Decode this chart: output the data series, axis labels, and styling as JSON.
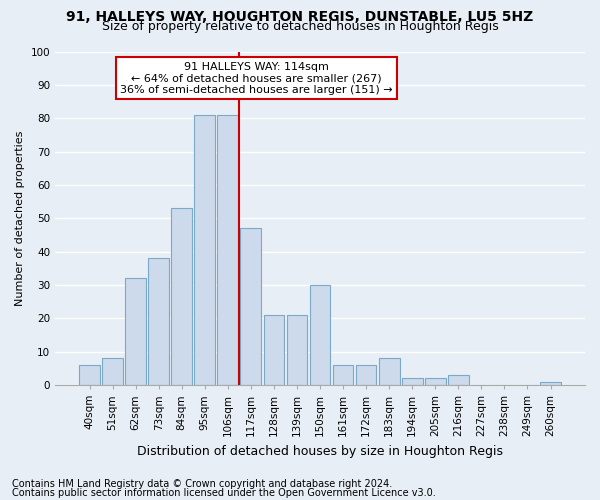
{
  "title1": "91, HALLEYS WAY, HOUGHTON REGIS, DUNSTABLE, LU5 5HZ",
  "title2": "Size of property relative to detached houses in Houghton Regis",
  "xlabel": "Distribution of detached houses by size in Houghton Regis",
  "ylabel": "Number of detached properties",
  "categories": [
    "40sqm",
    "51sqm",
    "62sqm",
    "73sqm",
    "84sqm",
    "95sqm",
    "106sqm",
    "117sqm",
    "128sqm",
    "139sqm",
    "150sqm",
    "161sqm",
    "172sqm",
    "183sqm",
    "194sqm",
    "205sqm",
    "216sqm",
    "227sqm",
    "238sqm",
    "249sqm",
    "260sqm"
  ],
  "values": [
    6,
    8,
    32,
    38,
    53,
    81,
    81,
    47,
    21,
    21,
    30,
    6,
    6,
    8,
    2,
    2,
    3,
    0,
    0,
    0,
    1
  ],
  "bar_color": "#ccdaeb",
  "bar_edge_color": "#7aaac8",
  "background_color": "#e8eef5",
  "grid_color": "#ffffff",
  "vline_color": "#cc0000",
  "annotation_text": "91 HALLEYS WAY: 114sqm\n← 64% of detached houses are smaller (267)\n36% of semi-detached houses are larger (151) →",
  "annotation_box_facecolor": "#ffffff",
  "annotation_box_edgecolor": "#cc0000",
  "ylim": [
    0,
    100
  ],
  "yticks": [
    0,
    10,
    20,
    30,
    40,
    50,
    60,
    70,
    80,
    90,
    100
  ],
  "footnote1": "Contains HM Land Registry data © Crown copyright and database right 2024.",
  "footnote2": "Contains public sector information licensed under the Open Government Licence v3.0.",
  "title1_fontsize": 10,
  "title2_fontsize": 9,
  "xlabel_fontsize": 9,
  "ylabel_fontsize": 8,
  "tick_fontsize": 7.5,
  "annotation_fontsize": 8,
  "footnote_fontsize": 7
}
